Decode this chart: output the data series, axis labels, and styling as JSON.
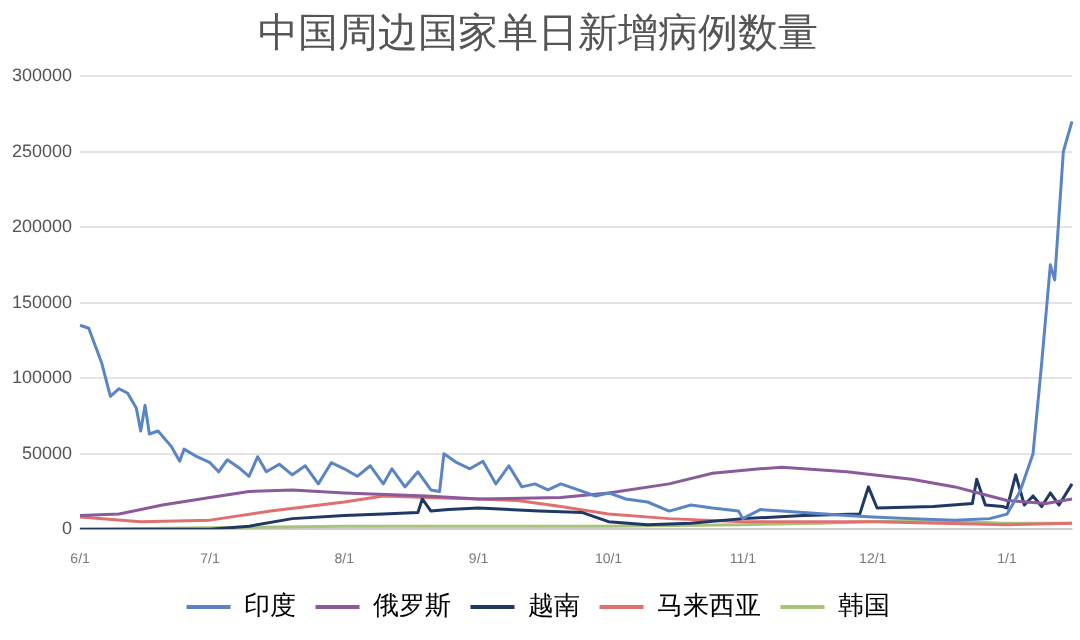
{
  "chart_data": {
    "type": "line",
    "title": "中国周边国家单日新增病例数量",
    "categories": [
      "6/1",
      null,
      null,
      null,
      null,
      null,
      null,
      null,
      null,
      null,
      null,
      null,
      null,
      null,
      null,
      null,
      null,
      null,
      null,
      null,
      null,
      null,
      null,
      null,
      null,
      null,
      null,
      null,
      null,
      null,
      "7/1",
      null,
      null,
      null,
      null,
      null,
      null,
      null,
      null,
      null,
      null,
      null,
      null,
      null,
      null,
      null,
      null,
      null,
      null,
      null,
      null,
      null,
      null,
      null,
      null,
      null,
      null,
      null,
      null,
      null,
      null,
      "8/1",
      null,
      null,
      null,
      null,
      null,
      null,
      null,
      null,
      null,
      null,
      null,
      null,
      null,
      null,
      null,
      null,
      null,
      null,
      null,
      null,
      null,
      null,
      null,
      null,
      null,
      null,
      null,
      null,
      null,
      null,
      "9/1",
      null,
      null,
      null,
      null,
      null,
      null,
      null,
      null,
      null,
      null,
      null,
      null,
      null,
      null,
      null,
      null,
      null,
      null,
      null,
      null,
      null,
      null,
      null,
      null,
      null,
      null,
      null,
      null,
      null,
      "10/1",
      null,
      null,
      null,
      null,
      null,
      null,
      null,
      null,
      null,
      null,
      null,
      null,
      null,
      null,
      null,
      null,
      null,
      null,
      null,
      null,
      null,
      null,
      null,
      null,
      null,
      null,
      null,
      null,
      null,
      null,
      "11/1",
      null,
      null,
      null,
      null,
      null,
      null,
      null,
      null,
      null,
      null,
      null,
      null,
      null,
      null,
      null,
      null,
      null,
      null,
      null,
      null,
      null,
      null,
      null,
      null,
      null,
      null,
      null,
      null,
      null,
      "12/1",
      null,
      null,
      null,
      null,
      null,
      null,
      null,
      null,
      null,
      null,
      null,
      null,
      null,
      null,
      null,
      null,
      null,
      null,
      null,
      null,
      null,
      null,
      null,
      null,
      null,
      null,
      null,
      null,
      null,
      null,
      "1/1",
      null,
      null,
      null,
      null,
      null,
      null,
      null,
      null,
      null,
      null,
      null,
      null,
      null,
      null,
      null
    ],
    "ylim": [
      0,
      300000
    ],
    "yticks": [
      0,
      50000,
      100000,
      150000,
      200000,
      250000,
      300000
    ],
    "grid": "y",
    "legend": "bottom",
    "marker": "none",
    "line_style": "solid",
    "series": [
      {
        "name": "印度",
        "color": "#5b84c4",
        "values": [
          135000,
          null,
          133000,
          null,
          null,
          110000,
          null,
          88000,
          null,
          93000,
          null,
          90000,
          null,
          80000,
          65000,
          82000,
          63000,
          null,
          65000,
          null,
          null,
          55000,
          null,
          45000,
          53000,
          null,
          null,
          48000,
          null,
          null,
          44000,
          null,
          38000,
          null,
          46000,
          null,
          null,
          40000,
          null,
          35000,
          null,
          48000,
          null,
          38000,
          null,
          null,
          43000,
          null,
          null,
          36000,
          null,
          null,
          42000,
          null,
          null,
          30000,
          null,
          null,
          44000,
          null,
          null,
          40000,
          null,
          null,
          35000,
          null,
          null,
          42000,
          null,
          null,
          30000,
          null,
          40000,
          null,
          null,
          28000,
          null,
          null,
          38000,
          null,
          null,
          26000,
          null,
          25000,
          50000,
          null,
          null,
          44000,
          null,
          null,
          40000,
          null,
          null,
          45000,
          null,
          null,
          30000,
          null,
          null,
          42000,
          null,
          null,
          28000,
          null,
          null,
          30000,
          null,
          null,
          26000,
          null,
          null,
          30000,
          null,
          null,
          null,
          26000,
          null,
          null,
          null,
          22000,
          null,
          null,
          24000,
          null,
          null,
          null,
          20000,
          null,
          null,
          null,
          null,
          18000,
          null,
          null,
          null,
          null,
          12000,
          null,
          null,
          null,
          null,
          16000,
          null,
          null,
          null,
          null,
          14000,
          null,
          null,
          null,
          null,
          null,
          12000,
          7000,
          null,
          null,
          null,
          13000,
          null,
          null,
          null,
          null,
          12000,
          null,
          null,
          null,
          null,
          null,
          null,
          null,
          null,
          null,
          10000,
          null,
          null,
          null,
          null,
          9000,
          null,
          null,
          null,
          null,
          null,
          8000,
          null,
          null,
          null,
          null,
          null,
          null,
          null,
          null,
          7000,
          null,
          null,
          null,
          null,
          null,
          null,
          null,
          null,
          null,
          6000,
          null,
          null,
          null,
          null,
          null,
          null,
          null,
          7000,
          null,
          null,
          null,
          10000,
          null,
          null,
          25000,
          null,
          null,
          50000,
          null,
          110000,
          null,
          175000,
          165000,
          null,
          250000,
          null,
          270000
        ]
      },
      {
        "name": "俄罗斯",
        "color": "#8a5a9a",
        "values": [
          9000,
          null,
          null,
          null,
          null,
          null,
          null,
          null,
          null,
          10000,
          null,
          null,
          null,
          null,
          null,
          null,
          null,
          null,
          null,
          16000,
          null,
          null,
          null,
          null,
          null,
          null,
          null,
          null,
          null,
          null,
          21000,
          null,
          null,
          null,
          null,
          null,
          null,
          null,
          null,
          25000,
          null,
          null,
          null,
          null,
          null,
          null,
          null,
          null,
          null,
          26000,
          null,
          null,
          null,
          null,
          null,
          null,
          null,
          null,
          null,
          null,
          null,
          24000,
          null,
          null,
          null,
          null,
          null,
          null,
          null,
          null,
          null,
          null,
          null,
          null,
          null,
          null,
          null,
          null,
          null,
          null,
          22000,
          null,
          null,
          null,
          null,
          null,
          null,
          null,
          null,
          null,
          null,
          null,
          20000,
          null,
          null,
          null,
          null,
          null,
          null,
          null,
          null,
          null,
          null,
          null,
          null,
          null,
          null,
          null,
          null,
          null,
          null,
          21000,
          null,
          null,
          null,
          null,
          null,
          null,
          null,
          null,
          null,
          null,
          24000,
          null,
          null,
          null,
          null,
          null,
          null,
          null,
          null,
          null,
          null,
          null,
          null,
          null,
          30000,
          null,
          null,
          null,
          null,
          null,
          null,
          null,
          null,
          null,
          37000,
          null,
          null,
          null,
          null,
          null,
          null,
          null,
          null,
          null,
          null,
          40000,
          null,
          null,
          null,
          null,
          41000,
          null,
          null,
          null,
          null,
          null,
          null,
          null,
          null,
          null,
          null,
          null,
          null,
          null,
          null,
          38000,
          null,
          null,
          null,
          null,
          null,
          null,
          null,
          null,
          null,
          null,
          null,
          null,
          null,
          null,
          33000,
          null,
          null,
          null,
          null,
          null,
          null,
          null,
          null,
          null,
          28000,
          null,
          null,
          null,
          null,
          null,
          null,
          null,
          22000,
          null,
          null,
          null,
          19000,
          null,
          null,
          null,
          null,
          null,
          null,
          null,
          null,
          17000,
          null,
          null,
          null,
          null,
          null,
          20000
        ]
      },
      {
        "name": "越南",
        "color": "#1f3864",
        "values": [
          0,
          null,
          null,
          null,
          null,
          null,
          null,
          null,
          null,
          null,
          null,
          null,
          null,
          null,
          null,
          null,
          null,
          null,
          null,
          null,
          null,
          null,
          null,
          null,
          null,
          null,
          null,
          null,
          null,
          null,
          0,
          null,
          null,
          null,
          null,
          null,
          null,
          null,
          null,
          2000,
          null,
          null,
          null,
          null,
          null,
          null,
          null,
          null,
          null,
          7000,
          null,
          null,
          null,
          null,
          null,
          null,
          null,
          null,
          null,
          null,
          null,
          9000,
          null,
          null,
          null,
          null,
          null,
          null,
          null,
          null,
          10000,
          null,
          null,
          null,
          null,
          null,
          null,
          null,
          11000,
          20000,
          null,
          12000,
          null,
          null,
          null,
          13000,
          null,
          null,
          null,
          null,
          null,
          null,
          14000,
          null,
          null,
          null,
          null,
          null,
          null,
          null,
          null,
          null,
          null,
          null,
          null,
          null,
          12000,
          null,
          null,
          null,
          null,
          null,
          null,
          null,
          null,
          null,
          11000,
          null,
          null,
          null,
          null,
          null,
          5000,
          null,
          null,
          null,
          null,
          null,
          null,
          null,
          null,
          3000,
          null,
          null,
          null,
          null,
          null,
          null,
          null,
          null,
          null,
          4000,
          null,
          null,
          null,
          null,
          null,
          null,
          null,
          null,
          null,
          null,
          null,
          7000,
          null,
          null,
          null,
          null,
          null,
          null,
          null,
          null,
          null,
          null,
          null,
          null,
          null,
          9000,
          null,
          null,
          null,
          null,
          null,
          null,
          null,
          null,
          null,
          null,
          null,
          null,
          10000,
          null,
          28000,
          null,
          14000,
          null,
          null,
          null,
          null,
          null,
          null,
          null,
          null,
          null,
          null,
          null,
          null,
          15000,
          null,
          null,
          null,
          null,
          null,
          null,
          null,
          null,
          17000,
          33000,
          null,
          16000,
          null,
          null,
          null,
          15000,
          14000,
          null,
          36000,
          null,
          16000,
          null,
          22000,
          null,
          15000,
          null,
          24000,
          null,
          16000,
          null,
          null,
          30000
        ]
      },
      {
        "name": "马来西亚",
        "color": "#e07070",
        "values": [
          8000,
          null,
          null,
          null,
          null,
          null,
          null,
          null,
          null,
          null,
          null,
          null,
          null,
          null,
          5000,
          null,
          null,
          null,
          null,
          null,
          null,
          null,
          null,
          null,
          null,
          null,
          null,
          null,
          null,
          null,
          6000,
          null,
          null,
          null,
          null,
          null,
          null,
          null,
          null,
          null,
          null,
          null,
          null,
          null,
          12000,
          null,
          null,
          null,
          null,
          null,
          null,
          null,
          null,
          null,
          null,
          null,
          null,
          null,
          null,
          null,
          null,
          18000,
          null,
          null,
          null,
          null,
          null,
          null,
          null,
          null,
          22000,
          null,
          null,
          null,
          null,
          null,
          null,
          null,
          null,
          null,
          21000,
          null,
          null,
          null,
          null,
          null,
          null,
          null,
          null,
          null,
          null,
          null,
          20000,
          null,
          null,
          null,
          null,
          null,
          null,
          null,
          null,
          19000,
          null,
          null,
          null,
          null,
          null,
          null,
          null,
          null,
          null,
          15000,
          null,
          null,
          null,
          null,
          null,
          null,
          null,
          null,
          null,
          null,
          10000,
          null,
          null,
          null,
          null,
          null,
          null,
          null,
          null,
          null,
          null,
          null,
          null,
          null,
          7000,
          null,
          null,
          null,
          null,
          null,
          null,
          null,
          null,
          null,
          null,
          null,
          null,
          null,
          null,
          null,
          null,
          5000,
          null,
          null,
          null,
          null,
          null,
          null,
          null,
          null,
          null,
          null,
          null,
          null,
          null,
          null,
          null,
          null,
          null,
          null,
          null,
          null,
          null,
          null,
          null,
          null,
          null,
          null,
          null,
          null,
          null,
          5000,
          null,
          null,
          null,
          null,
          null,
          null,
          null,
          null,
          null,
          null,
          null,
          null,
          null,
          null,
          null,
          null,
          null,
          null,
          null,
          null,
          null,
          null,
          null,
          null,
          null,
          null,
          null,
          null,
          null,
          null,
          3000,
          null,
          null,
          null,
          null,
          null,
          null,
          null,
          null,
          null,
          null,
          null,
          null,
          null,
          null,
          4000
        ]
      },
      {
        "name": "韩国",
        "color": "#a9c27a",
        "values": [
          0,
          null,
          null,
          null,
          null,
          null,
          null,
          null,
          null,
          null,
          null,
          null,
          null,
          null,
          null,
          null,
          null,
          null,
          null,
          null,
          null,
          null,
          null,
          null,
          null,
          null,
          null,
          null,
          null,
          null,
          1000,
          null,
          null,
          null,
          null,
          null,
          null,
          null,
          null,
          null,
          null,
          null,
          null,
          null,
          null,
          null,
          null,
          null,
          null,
          null,
          null,
          null,
          null,
          null,
          null,
          null,
          null,
          null,
          null,
          null,
          null,
          2000,
          null,
          null,
          null,
          null,
          null,
          null,
          null,
          null,
          null,
          null,
          null,
          null,
          null,
          null,
          null,
          null,
          null,
          null,
          null,
          null,
          null,
          null,
          null,
          null,
          null,
          null,
          null,
          null,
          null,
          null,
          2000,
          null,
          null,
          null,
          null,
          null,
          null,
          null,
          null,
          null,
          null,
          null,
          null,
          null,
          null,
          null,
          null,
          null,
          null,
          null,
          null,
          null,
          null,
          null,
          null,
          null,
          null,
          null,
          null,
          null,
          2000,
          null,
          null,
          null,
          null,
          null,
          null,
          null,
          null,
          null,
          null,
          null,
          null,
          null,
          null,
          null,
          null,
          null,
          null,
          null,
          null,
          null,
          null,
          null,
          null,
          null,
          null,
          null,
          null,
          null,
          null,
          3000,
          null,
          null,
          null,
          null,
          null,
          null,
          null,
          null,
          null,
          null,
          null,
          null,
          null,
          null,
          null,
          null,
          null,
          4000,
          null,
          null,
          null,
          null,
          null,
          null,
          null,
          null,
          null,
          null,
          5000,
          null,
          null,
          null,
          null,
          null,
          null,
          null,
          null,
          null,
          null,
          null,
          null,
          null,
          6000,
          null,
          null,
          null,
          null,
          null,
          null,
          null,
          null,
          null,
          null,
          null,
          null,
          null,
          null,
          null,
          null,
          4000,
          null,
          null,
          null,
          null,
          null,
          null,
          null,
          null,
          null,
          null,
          null,
          null,
          null,
          null,
          null,
          4000
        ]
      }
    ]
  }
}
